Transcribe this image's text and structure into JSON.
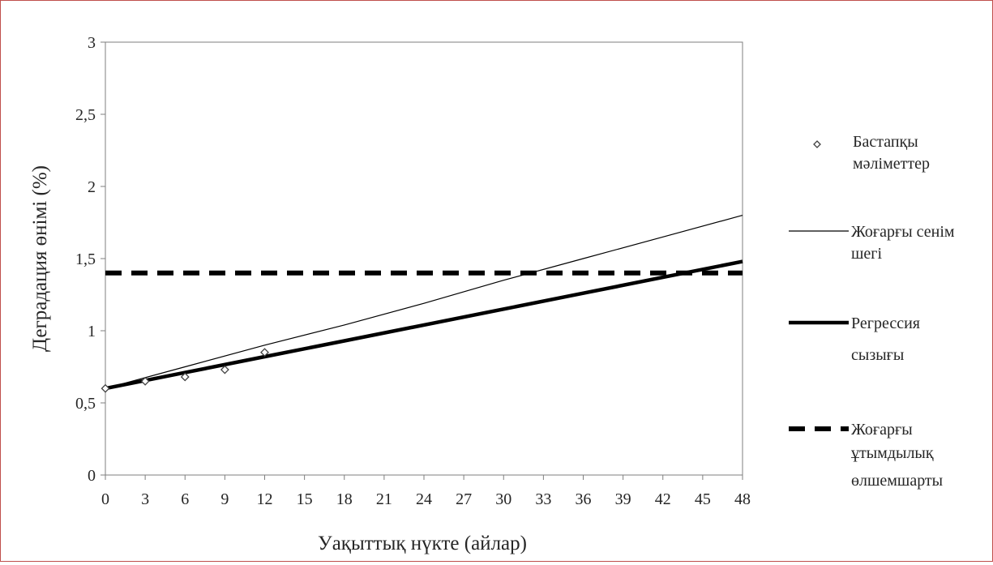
{
  "chart_data": {
    "type": "line",
    "xlabel": "Уақыттық нүкте (айлар)",
    "ylabel": "Деградация өнімі (%)",
    "xlim": [
      0,
      48
    ],
    "ylim": [
      0,
      3
    ],
    "x_ticks": [
      "0",
      "3",
      "6",
      "9",
      "12",
      "15",
      "18",
      "21",
      "24",
      "27",
      "30",
      "33",
      "36",
      "39",
      "42",
      "45",
      "48"
    ],
    "y_ticks": [
      "0",
      "0,5",
      "1",
      "1,5",
      "2",
      "2,5",
      "3"
    ],
    "grid": false,
    "legend_position": "right",
    "series": [
      {
        "name": "Бастапқы мәліметтер",
        "type": "scatter",
        "marker": "diamond-open",
        "x": [
          0,
          3,
          6,
          9,
          12
        ],
        "y": [
          0.6,
          0.65,
          0.68,
          0.73,
          0.85
        ]
      },
      {
        "name": "Жоғарғы сенім шегі",
        "type": "line",
        "style": "thin",
        "x": [
          0,
          6,
          12,
          18,
          24,
          30,
          36,
          42,
          48
        ],
        "y": [
          0.6,
          0.75,
          0.9,
          1.04,
          1.19,
          1.35,
          1.5,
          1.65,
          1.8
        ]
      },
      {
        "name": "Регрессия сызығы",
        "type": "line",
        "style": "thick",
        "x": [
          0,
          6,
          12,
          18,
          24,
          30,
          36,
          42,
          48
        ],
        "y": [
          0.6,
          0.71,
          0.82,
          0.93,
          1.04,
          1.15,
          1.26,
          1.37,
          1.48
        ]
      },
      {
        "name": "Жоғарғы ұтымдылық өлшемшарты",
        "type": "line",
        "style": "dashed",
        "x": [
          0,
          48
        ],
        "y": [
          1.4,
          1.4
        ]
      }
    ],
    "legend": [
      {
        "line1": "Бастапқы",
        "line2": "мәліметтер"
      },
      {
        "line1": "Жоғарғы сенім",
        "line2": "шегі"
      },
      {
        "line1": "Регрессия",
        "line2": "сызығы"
      },
      {
        "line1": "Жоғарғы",
        "line2": "ұтымдылық",
        "line3": "өлшемшарты"
      }
    ]
  }
}
